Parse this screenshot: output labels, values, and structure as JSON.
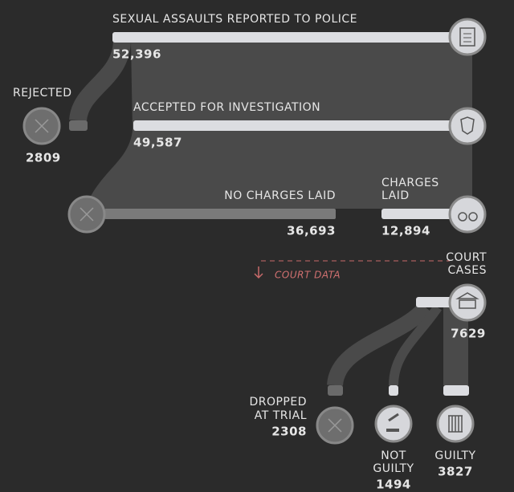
{
  "nodes": [
    {
      "label": "SEXUAL ASSAULTS REPORTED TO POLICE",
      "value": "52,396"
    },
    {
      "label": "REJECTED",
      "value": "2809"
    },
    {
      "label": "ACCEPTED FOR INVESTIGATION",
      "value": "49,587"
    },
    {
      "label": "NO CHARGES LAID",
      "value": "36,693"
    },
    {
      "label": [
        "CHARGES",
        "LAID"
      ],
      "value": "12,894"
    },
    {
      "label": [
        "COURT",
        "CASES"
      ],
      "value": "7629"
    },
    {
      "label": [
        "DROPPED",
        "AT TRIAL"
      ],
      "value": "2308"
    },
    {
      "label": [
        "NOT",
        "GUILTY"
      ],
      "value": "1494"
    },
    {
      "label": "GUILTY",
      "value": "3827"
    }
  ],
  "divider": "COURT DATA"
}
